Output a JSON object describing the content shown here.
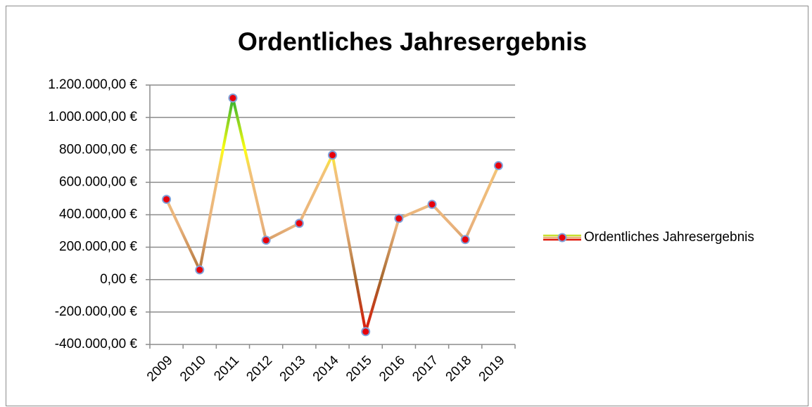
{
  "chart_data": {
    "type": "line",
    "title": "Ordentliches Jahresergebnis",
    "categories": [
      "2009",
      "2010",
      "2011",
      "2012",
      "2013",
      "2014",
      "2015",
      "2016",
      "2017",
      "2018",
      "2019"
    ],
    "series": [
      {
        "name": "Ordentliches Jahresergebnis",
        "values": [
          495000,
          60000,
          1120000,
          243000,
          347000,
          768000,
          -321000,
          377000,
          464000,
          247000,
          703000
        ]
      }
    ],
    "ylim": [
      -400000,
      1200000
    ],
    "yticks": [
      {
        "value": -400000,
        "label": "-400.000,00 €"
      },
      {
        "value": -200000,
        "label": "-200.000,00 €"
      },
      {
        "value": 0,
        "label": "0,00 €"
      },
      {
        "value": 200000,
        "label": "200.000,00 €"
      },
      {
        "value": 400000,
        "label": "400.000,00 €"
      },
      {
        "value": 600000,
        "label": "600.000,00 €"
      },
      {
        "value": 800000,
        "label": "800.000,00 €"
      },
      {
        "value": 1000000,
        "label": "1.000.000,00 €"
      },
      {
        "value": 1200000,
        "label": "1.200.000,00 €"
      }
    ],
    "grid": true,
    "legend": "right"
  }
}
